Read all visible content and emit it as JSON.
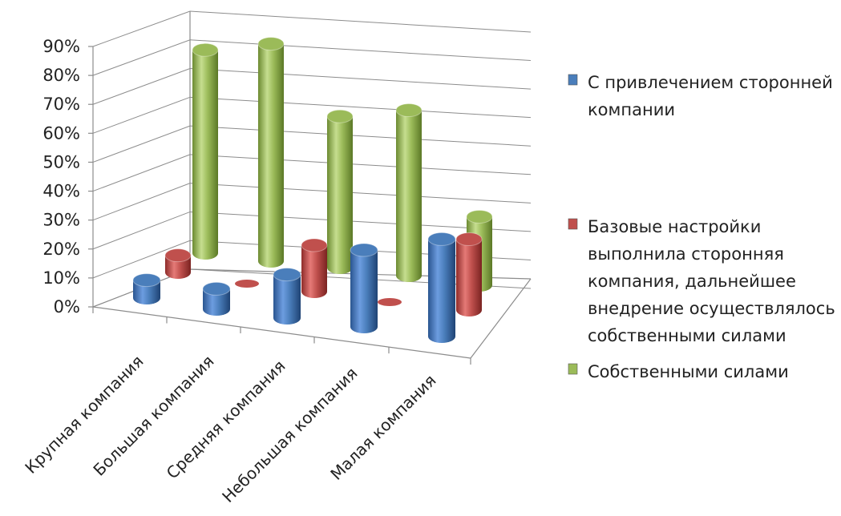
{
  "chart_data": {
    "type": "bar",
    "style": "3d-cylinder",
    "categories": [
      "Крупная компания",
      "Большая компания",
      "Средняя компания",
      "Небольшая компания",
      "Малая компания"
    ],
    "series": [
      {
        "name": "С привлечением сторонней компании",
        "values": [
          7,
          8,
          17,
          30,
          38
        ],
        "color": "#4a7ebb"
      },
      {
        "name": "Базовые настройки выполнила сторонняя компания, дальнейшее внедрение осуществлялось собственными силами",
        "values": [
          7,
          0,
          19,
          0,
          29
        ],
        "color": "#c0504d"
      },
      {
        "name": "Собственными силами",
        "values": [
          86,
          92,
          64,
          70,
          29
        ],
        "color": "#9bbb59"
      }
    ],
    "yticks": [
      "0%",
      "10%",
      "20%",
      "30%",
      "40%",
      "50%",
      "60%",
      "70%",
      "80%",
      "90%"
    ],
    "ylim": [
      0,
      90
    ],
    "grid": true,
    "legend_position": "right",
    "legend_lines": [
      [
        "С привлечением сторонней",
        "компании"
      ],
      [
        "Базовые настройки",
        "выполнила сторонняя",
        "компания, дальнейшее",
        "внедрение осуществлялось",
        "собственными силами"
      ],
      [
        "Собственными силами"
      ]
    ]
  }
}
